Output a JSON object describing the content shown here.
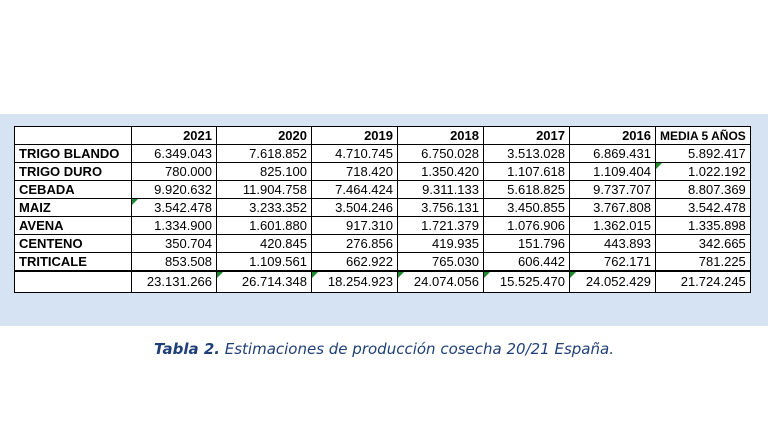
{
  "table": {
    "corner": "",
    "headers": [
      "2021",
      "2020",
      "2019",
      "2018",
      "2017",
      "2016",
      "MEDIA 5 AÑOS"
    ],
    "rows": [
      {
        "label": "TRIGO BLANDO",
        "values": [
          "6.349.043",
          "7.618.852",
          "4.710.745",
          "6.750.028",
          "3.513.028",
          "6.869.431",
          "5.892.417"
        ]
      },
      {
        "label": "TRIGO DURO",
        "values": [
          "780.000",
          "825.100",
          "718.420",
          "1.350.420",
          "1.107.618",
          "1.109.404",
          "1.022.192"
        ]
      },
      {
        "label": "CEBADA",
        "values": [
          "9.920.632",
          "11.904.758",
          "7.464.424",
          "9.311.133",
          "5.618.825",
          "9.737.707",
          "8.807.369"
        ]
      },
      {
        "label": "MAIZ",
        "values": [
          "3.542.478",
          "3.233.352",
          "3.504.246",
          "3.756.131",
          "3.450.855",
          "3.767.808",
          "3.542.478"
        ]
      },
      {
        "label": "AVENA",
        "values": [
          "1.334.900",
          "1.601.880",
          "917.310",
          "1.721.379",
          "1.076.906",
          "1.362.015",
          "1.335.898"
        ]
      },
      {
        "label": "CENTENO",
        "values": [
          "350.704",
          "420.845",
          "276.856",
          "419.935",
          "151.796",
          "443.893",
          "342.665"
        ]
      },
      {
        "label": "TRITICALE",
        "values": [
          "853.508",
          "1.109.561",
          "662.922",
          "765.030",
          "606.442",
          "762.171",
          "781.225"
        ]
      }
    ],
    "totals": [
      "23.131.266",
      "26.714.348",
      "18.254.923",
      "24.074.056",
      "15.525.470",
      "24.052.429",
      "21.724.245"
    ]
  },
  "caption": {
    "label": "Tabla 2.",
    "text": "Estimaciones de producción cosecha 20/21 España."
  },
  "colors": {
    "header_year": "#ffff00",
    "header_media": "#f6a623",
    "label_column": "#3cb043",
    "panel": "#d6e3f3",
    "caption": "#1f3f78"
  }
}
